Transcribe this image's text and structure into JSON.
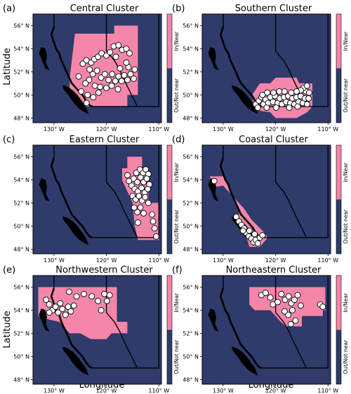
{
  "figure": {
    "ylabel": "Latitude",
    "xlabel": "Longitude",
    "lat_ticks": [
      "56° N",
      "54° N",
      "52° N",
      "50° N",
      "48° N"
    ],
    "lon_ticks": [
      "130° W",
      "120° W",
      "110° W"
    ],
    "colorbar": {
      "in_label": "In/Near",
      "out_label": "Out/Not near"
    },
    "colors": {
      "ocean": "#2f3b6b",
      "cluster": "#f486aa",
      "coast": "#000000",
      "point_fill": "#ffffff"
    }
  },
  "panels": [
    {
      "letter": "(a)",
      "title": "Central Cluster",
      "region": [
        [
          -126,
          55.3
        ],
        [
          -118.5,
          55.3
        ],
        [
          -118.5,
          56
        ],
        [
          -114,
          56
        ],
        [
          -114,
          50
        ],
        [
          -116,
          50
        ],
        [
          -116,
          49
        ],
        [
          -125,
          49
        ],
        [
          -127,
          50
        ],
        [
          -127,
          51.5
        ]
      ],
      "points": [
        [
          -124.5,
          52.7
        ],
        [
          -123.8,
          53.0
        ],
        [
          -122.9,
          52.8
        ],
        [
          -122.3,
          53.1
        ],
        [
          -121.6,
          53.3
        ],
        [
          -120.9,
          53.6
        ],
        [
          -120.0,
          53.4
        ],
        [
          -119.3,
          53.7
        ],
        [
          -118.6,
          54.2
        ],
        [
          -117.7,
          54.3
        ],
        [
          -117.0,
          53.9
        ],
        [
          -118.2,
          53.3
        ],
        [
          -116.2,
          54.0
        ],
        [
          -115.6,
          53.6
        ],
        [
          -123.2,
          52.2
        ],
        [
          -122.6,
          51.8
        ],
        [
          -121.8,
          52.1
        ],
        [
          -121.0,
          51.5
        ],
        [
          -120.3,
          51.8
        ],
        [
          -119.6,
          51.3
        ],
        [
          -118.9,
          51.8
        ],
        [
          -118.3,
          51.2
        ],
        [
          -117.7,
          51.6
        ],
        [
          -117.1,
          51.2
        ],
        [
          -116.6,
          51.7
        ],
        [
          -116.0,
          51.3
        ],
        [
          -115.4,
          51.8
        ],
        [
          -114.8,
          51.4
        ],
        [
          -114.6,
          52.2
        ],
        [
          -115.8,
          52.4
        ],
        [
          -117.4,
          52.3
        ],
        [
          -119.0,
          50.8
        ],
        [
          -120.0,
          50.6
        ],
        [
          -121.2,
          50.7
        ],
        [
          -122.2,
          50.8
        ],
        [
          -123.3,
          51.3
        ],
        [
          -124.0,
          51.0
        ],
        [
          -124.8,
          50.3
        ],
        [
          -123.6,
          50.0
        ],
        [
          -122.5,
          49.8
        ],
        [
          -121.5,
          50.2
        ],
        [
          -123.8,
          49.3
        ],
        [
          -125.3,
          51.6
        ],
        [
          -116.2,
          52.8
        ],
        [
          -117.8,
          50.5
        ]
      ]
    },
    {
      "letter": "(b)",
      "title": "Southern Cluster",
      "region": [
        [
          -124.5,
          50
        ],
        [
          -123,
          51
        ],
        [
          -121,
          51
        ],
        [
          -120,
          51.5
        ],
        [
          -116,
          51.5
        ],
        [
          -115.5,
          51
        ],
        [
          -113,
          51
        ],
        [
          -113,
          49
        ],
        [
          -114,
          48.5
        ],
        [
          -116,
          48
        ],
        [
          -120,
          48
        ],
        [
          -121,
          48.5
        ],
        [
          -124,
          48.7
        ]
      ],
      "points": [
        [
          -123.8,
          49.2
        ],
        [
          -123.2,
          49.5
        ],
        [
          -122.7,
          49.8
        ],
        [
          -122.3,
          49.2
        ],
        [
          -121.9,
          49.6
        ],
        [
          -121.4,
          49.3
        ],
        [
          -121.0,
          49.8
        ],
        [
          -120.5,
          49.4
        ],
        [
          -120.1,
          49.9
        ],
        [
          -119.6,
          49.3
        ],
        [
          -119.2,
          49.7
        ],
        [
          -118.8,
          49.2
        ],
        [
          -118.4,
          49.8
        ],
        [
          -118.0,
          49.4
        ],
        [
          -117.6,
          49.9
        ],
        [
          -117.2,
          49.3
        ],
        [
          -116.8,
          49.7
        ],
        [
          -116.4,
          49.2
        ],
        [
          -116.0,
          49.8
        ],
        [
          -115.6,
          49.4
        ],
        [
          -115.2,
          49.9
        ],
        [
          -114.8,
          49.3
        ],
        [
          -114.4,
          49.7
        ],
        [
          -114.0,
          49.2
        ],
        [
          -113.7,
          49.7
        ],
        [
          -114.2,
          50.3
        ],
        [
          -114.7,
          50.6
        ],
        [
          -115.2,
          50.4
        ],
        [
          -116.0,
          50.3
        ],
        [
          -117.0,
          50.2
        ],
        [
          -118.3,
          50.3
        ],
        [
          -119.3,
          50.3
        ],
        [
          -120.4,
          50.2
        ],
        [
          -121.6,
          50.2
        ],
        [
          -122.5,
          50.0
        ],
        [
          -114.0,
          50.8
        ],
        [
          -113.6,
          50.2
        ],
        [
          -115.8,
          49.0
        ],
        [
          -117.4,
          48.9
        ],
        [
          -119.9,
          48.9
        ],
        [
          -121.7,
          48.9
        ],
        [
          -123.4,
          48.9
        ]
      ]
    },
    {
      "letter": "(c)",
      "title": "Eastern Cluster",
      "region": [
        [
          -117,
          55
        ],
        [
          -116,
          55
        ],
        [
          -116,
          56
        ],
        [
          -113.2,
          56
        ],
        [
          -113.2,
          55
        ],
        [
          -112,
          55
        ],
        [
          -112,
          52
        ],
        [
          -110,
          52
        ],
        [
          -110,
          48.8
        ],
        [
          -114,
          48.8
        ],
        [
          -114.6,
          50
        ],
        [
          -115,
          52
        ],
        [
          -116,
          53
        ],
        [
          -117,
          54
        ]
      ],
      "points": [
        [
          -114.3,
          54.6
        ],
        [
          -113.6,
          54.9
        ],
        [
          -113.0,
          54.6
        ],
        [
          -112.5,
          54.9
        ],
        [
          -112.0,
          54.5
        ],
        [
          -114.8,
          54.1
        ],
        [
          -114.1,
          53.8
        ],
        [
          -113.5,
          54.2
        ],
        [
          -112.9,
          53.8
        ],
        [
          -112.3,
          54.1
        ],
        [
          -111.8,
          53.6
        ],
        [
          -115.2,
          53.5
        ],
        [
          -114.6,
          53.2
        ],
        [
          -114.0,
          53.0
        ],
        [
          -113.3,
          53.3
        ],
        [
          -112.7,
          52.9
        ],
        [
          -112.1,
          53.2
        ],
        [
          -115.0,
          52.6
        ],
        [
          -114.4,
          52.3
        ],
        [
          -113.8,
          52.6
        ],
        [
          -113.2,
          52.2
        ],
        [
          -112.6,
          52.5
        ],
        [
          -112.0,
          52.0
        ],
        [
          -114.7,
          51.6
        ],
        [
          -114.1,
          51.2
        ],
        [
          -113.5,
          51.6
        ],
        [
          -112.9,
          51.1
        ],
        [
          -111.3,
          51.0
        ],
        [
          -111.1,
          50.4
        ],
        [
          -110.8,
          49.8
        ],
        [
          -110.5,
          49.1
        ],
        [
          -114.0,
          50.3
        ],
        [
          -115.7,
          53.9
        ],
        [
          -116.0,
          54.4
        ]
      ]
    },
    {
      "letter": "(d)",
      "title": "Coastal Cluster",
      "region": [
        [
          -132.5,
          54.3
        ],
        [
          -131.5,
          54.3
        ],
        [
          -131.5,
          53.3
        ],
        [
          -132.5,
          53.3
        ],
        [
          -132.5,
          54.3
        ],
        [
          -130,
          54.3
        ],
        [
          -127,
          51.5
        ],
        [
          -127,
          50.5
        ],
        [
          -125.5,
          49
        ],
        [
          -125,
          48.2
        ],
        [
          -123,
          48.2
        ],
        [
          -121.5,
          49
        ],
        [
          -122.5,
          49.6
        ],
        [
          -124.5,
          50.5
        ],
        [
          -126,
          51.5
        ],
        [
          -128,
          52.5
        ],
        [
          -130,
          53.5
        ],
        [
          -132.5,
          53.3
        ]
      ],
      "points": [
        [
          -131.7,
          53.9
        ],
        [
          -127.5,
          50.8
        ],
        [
          -127.0,
          50.4
        ],
        [
          -126.5,
          50.1
        ],
        [
          -126.0,
          49.8
        ],
        [
          -125.6,
          49.4
        ],
        [
          -125.1,
          49.1
        ],
        [
          -124.6,
          48.9
        ],
        [
          -124.2,
          48.6
        ],
        [
          -123.8,
          48.8
        ],
        [
          -123.4,
          48.5
        ],
        [
          -123.0,
          49.0
        ],
        [
          -122.5,
          49.2
        ],
        [
          -126.2,
          49.6
        ],
        [
          -125.0,
          49.6
        ],
        [
          -124.0,
          49.3
        ]
      ]
    },
    {
      "letter": "(e)",
      "title": "Northwestern Cluster",
      "region": [
        [
          -133,
          56
        ],
        [
          -118,
          56
        ],
        [
          -118,
          53
        ],
        [
          -116,
          53
        ],
        [
          -116,
          52
        ],
        [
          -119,
          52
        ],
        [
          -120,
          51.5
        ],
        [
          -123,
          51.5
        ],
        [
          -125,
          52
        ],
        [
          -127,
          52
        ],
        [
          -129,
          53
        ],
        [
          -131,
          53.2
        ],
        [
          -133,
          53.5
        ]
      ],
      "points": [
        [
          -131.5,
          54.9
        ],
        [
          -130.9,
          54.5
        ],
        [
          -130.3,
          54.0
        ],
        [
          -130.9,
          53.8
        ],
        [
          -129.7,
          54.3
        ],
        [
          -129.2,
          53.8
        ],
        [
          -128.8,
          54.6
        ],
        [
          -128.4,
          54.1
        ],
        [
          -127.8,
          53.6
        ],
        [
          -127.3,
          54.3
        ],
        [
          -126.8,
          53.9
        ],
        [
          -126.2,
          54.4
        ],
        [
          -125.7,
          55.2
        ],
        [
          -124.3,
          55.4
        ],
        [
          -122.8,
          55.2
        ],
        [
          -121.6,
          54.8
        ],
        [
          -120.4,
          55.4
        ],
        [
          -119.9,
          54.8
        ],
        [
          -119.4,
          55.3
        ],
        [
          -121.0,
          54.0
        ],
        [
          -127.1,
          55.6
        ]
      ]
    },
    {
      "letter": "(f)",
      "title": "Northeastern Cluster",
      "region": [
        [
          -125,
          56
        ],
        [
          -110.5,
          56
        ],
        [
          -110.5,
          54
        ],
        [
          -111,
          54
        ],
        [
          -111,
          53.5
        ],
        [
          -115,
          53.5
        ],
        [
          -115,
          52.6
        ],
        [
          -118,
          52.6
        ],
        [
          -119,
          53
        ],
        [
          -121,
          54
        ],
        [
          -124,
          54
        ],
        [
          -125,
          54.5
        ]
      ],
      "points": [
        [
          -122.7,
          55.3
        ],
        [
          -121.9,
          55.5
        ],
        [
          -121.0,
          55.1
        ],
        [
          -120.5,
          54.5
        ],
        [
          -119.6,
          54.7
        ],
        [
          -118.9,
          55.4
        ],
        [
          -118.2,
          54.9
        ],
        [
          -117.5,
          55.2
        ],
        [
          -117.0,
          54.6
        ],
        [
          -116.4,
          54.9
        ],
        [
          -115.8,
          55.3
        ],
        [
          -115.2,
          54.4
        ],
        [
          -116.8,
          54.0
        ],
        [
          -117.6,
          53.6
        ],
        [
          -118.3,
          53.9
        ],
        [
          -116.2,
          53.1
        ],
        [
          -117.1,
          52.8
        ],
        [
          -111.5,
          54.5
        ],
        [
          -111.0,
          54.3
        ]
      ]
    }
  ]
}
